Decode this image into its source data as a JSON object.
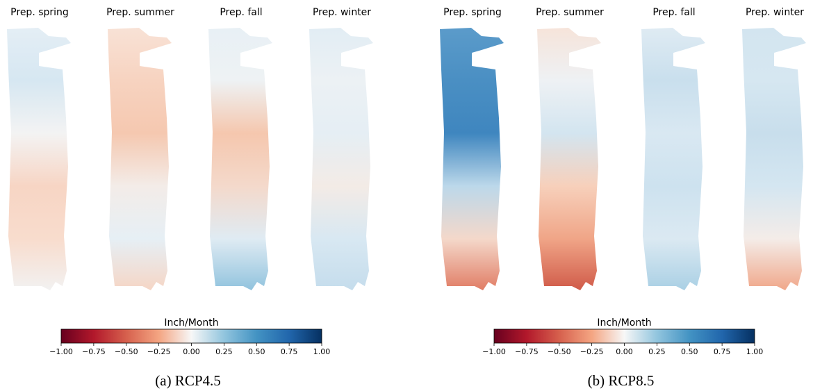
{
  "panels": [
    {
      "maps": [
        "Prep. spring",
        "Prep. summer",
        "Prep. fall",
        "Prep. winter"
      ],
      "colorbar": {
        "label": "Inch/Month",
        "lim": [
          -1,
          1
        ],
        "ticks": [
          {
            "value": -1,
            "label": "−1.00"
          },
          {
            "value": -0.75,
            "label": "−0.75"
          },
          {
            "value": -0.5,
            "label": "−0.50"
          },
          {
            "value": -0.25,
            "label": "−0.25"
          },
          {
            "value": 0,
            "label": "0.00"
          },
          {
            "value": 0.25,
            "label": "0.25"
          },
          {
            "value": 0.5,
            "label": "0.50"
          },
          {
            "value": 0.75,
            "label": "0.75"
          },
          {
            "value": 1,
            "label": "1.00"
          }
        ]
      },
      "caption": "(a) RCP4.5"
    },
    {
      "maps": [
        "Prep. spring",
        "Prep. summer",
        "Prep. fall",
        "Prep. winter"
      ],
      "colorbar": {
        "label": "Inch/Month",
        "lim": [
          -1,
          1
        ],
        "ticks": [
          {
            "value": -1,
            "label": "−1.00"
          },
          {
            "value": -0.75,
            "label": "−0.75"
          },
          {
            "value": -0.5,
            "label": "−0.50"
          },
          {
            "value": -0.25,
            "label": "−0.25"
          },
          {
            "value": 0,
            "label": "0.00"
          },
          {
            "value": 0.25,
            "label": "0.25"
          },
          {
            "value": 0.5,
            "label": "0.50"
          },
          {
            "value": 0.75,
            "label": "0.75"
          },
          {
            "value": 1,
            "label": "1.00"
          }
        ]
      },
      "caption": "(b) RCP8.5"
    }
  ]
}
